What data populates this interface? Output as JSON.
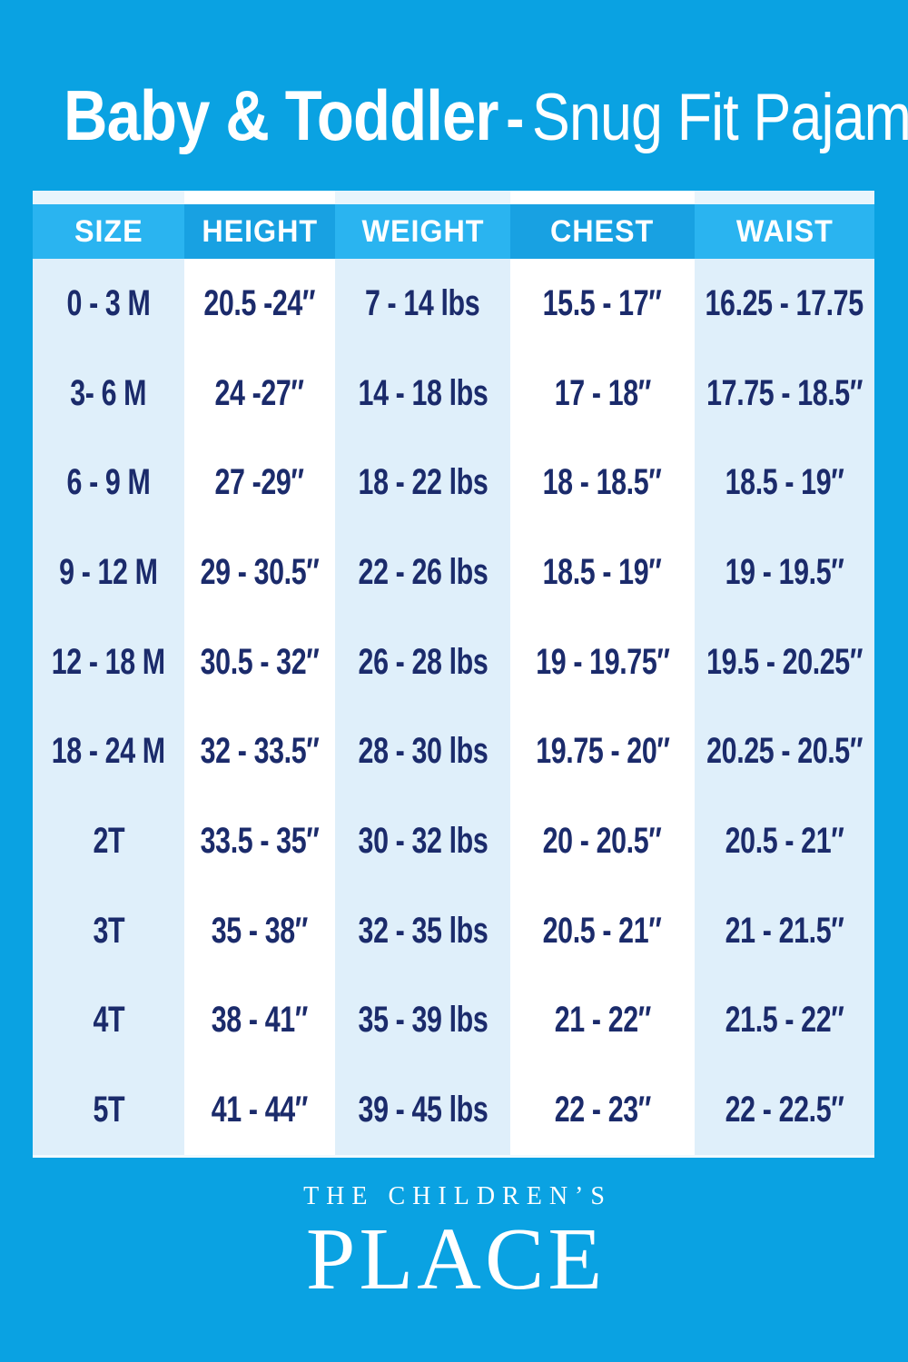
{
  "title": {
    "bold": "Baby & Toddler",
    "separator": "-",
    "light": "Snug Fit Pajamas"
  },
  "table": {
    "columns": [
      "SIZE",
      "HEIGHT",
      "WEIGHT",
      "CHEST",
      "WAIST"
    ],
    "rows": [
      [
        "0 - 3 M",
        "20.5 -24″",
        "7 - 14 lbs",
        "15.5 - 17″",
        "16.25 - 17.75"
      ],
      [
        "3- 6 M",
        "24 -27″",
        "14 - 18 lbs",
        "17 - 18″",
        "17.75 - 18.5″"
      ],
      [
        "6 - 9 M",
        "27 -29″",
        "18 - 22 lbs",
        "18 - 18.5″",
        "18.5 - 19″"
      ],
      [
        "9 - 12 M",
        "29 - 30.5″",
        "22 - 26 lbs",
        "18.5 - 19″",
        "19 - 19.5″"
      ],
      [
        "12 - 18 M",
        "30.5 - 32″",
        "26 - 28 lbs",
        "19 - 19.75″",
        "19.5 - 20.25″"
      ],
      [
        "18 - 24 M",
        "32 - 33.5″",
        "28 - 30 lbs",
        "19.75 - 20″",
        "20.25 - 20.5″"
      ],
      [
        "2T",
        "33.5 - 35″",
        "30 - 32 lbs",
        "20 - 20.5″",
        "20.5 - 21″"
      ],
      [
        "3T",
        "35 - 38″",
        "32 - 35 lbs",
        "20.5 - 21″",
        "21 - 21.5″"
      ],
      [
        "4T",
        "38 - 41″",
        "35 - 39 lbs",
        "21 - 22″",
        "21.5 - 22″"
      ],
      [
        "5T",
        "41 - 44″",
        "39 - 45 lbs",
        "22 - 23″",
        "22 - 22.5″"
      ]
    ]
  },
  "footer": {
    "brand_top": "THE CHILDREN’S",
    "brand_bottom": "PLACE"
  },
  "colors": {
    "background": "#0aa2e2",
    "header_light": "#2ab4f0",
    "header_dark": "#18a1e2",
    "column_light": "#dfeffa",
    "column_white": "#ffffff",
    "strip_light": "#e9f5fc",
    "text_navy": "#1b2b6b",
    "text_white": "#ffffff"
  }
}
